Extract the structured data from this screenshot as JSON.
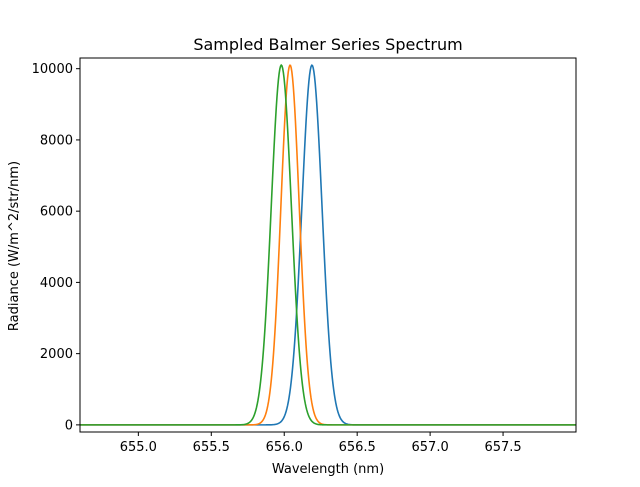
{
  "chart_data": {
    "type": "line",
    "title": "Sampled Balmer Series Spectrum",
    "xlabel": "Wavelength (nm)",
    "ylabel": "Radiance (W/m^2/str/nm)",
    "xlim": [
      654.6,
      658.0
    ],
    "ylim": [
      -200,
      10300
    ],
    "x_ticks": [
      655.0,
      655.5,
      656.0,
      656.5,
      657.0,
      657.5
    ],
    "x_tick_labels": [
      "655.0",
      "655.5",
      "656.0",
      "656.5",
      "657.0",
      "657.5"
    ],
    "y_ticks": [
      0,
      2000,
      4000,
      6000,
      8000,
      10000
    ],
    "y_tick_labels": [
      "0",
      "2000",
      "4000",
      "6000",
      "8000",
      "10000"
    ],
    "grid": false,
    "series": [
      {
        "color": "#1f77b4",
        "peak_x": 656.19,
        "peak_y": 10100,
        "half_width": 0.115
      },
      {
        "color": "#ff7f0e",
        "peak_x": 656.04,
        "peak_y": 10100,
        "half_width": 0.105
      },
      {
        "color": "#2ca02c",
        "peak_x": 655.98,
        "peak_y": 10100,
        "half_width": 0.115
      }
    ]
  }
}
